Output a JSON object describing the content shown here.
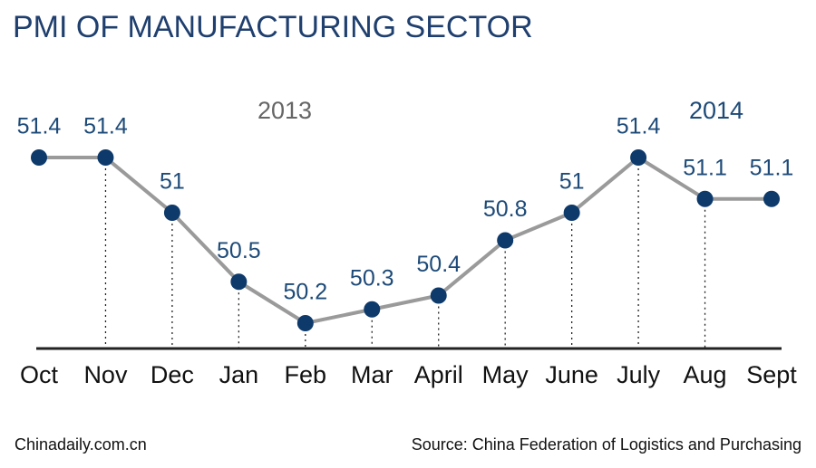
{
  "chart_data": {
    "type": "line",
    "title": "PMI OF MANUFACTURING SECTOR",
    "annotations": [
      "2013",
      "2014"
    ],
    "categories": [
      "Oct",
      "Nov",
      "Dec",
      "Jan",
      "Feb",
      "Mar",
      "April",
      "May",
      "June",
      "July",
      "Aug",
      "Sept"
    ],
    "values": [
      51.4,
      51.4,
      51,
      50.5,
      50.2,
      50.3,
      50.4,
      50.8,
      51,
      51.4,
      51.1,
      51.1
    ],
    "line_color": "#9a9a9a",
    "point_color": "#0d3a6b",
    "credit": "Chinadaily.com.cn",
    "source": "Source: China Federation of Logistics and Purchasing"
  }
}
